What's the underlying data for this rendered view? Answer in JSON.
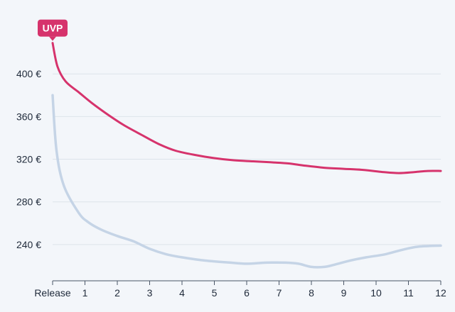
{
  "chart_data": {
    "type": "line",
    "x_tick_labels": [
      "Release",
      "1",
      "2",
      "3",
      "4",
      "5",
      "6",
      "7",
      "8",
      "9",
      "10",
      "11",
      "12"
    ],
    "y_ticks": [
      240,
      280,
      320,
      360,
      400
    ],
    "y_tick_labels": [
      "240 €",
      "280 €",
      "320 €",
      "360 €",
      "400 €"
    ],
    "xlim": [
      0,
      12
    ],
    "ylim": [
      206,
      448
    ],
    "grid": true,
    "series": [
      {
        "name": "UVP",
        "color": "#d6336c",
        "badge": true,
        "points": [
          [
            0,
            429
          ],
          [
            0.15,
            407
          ],
          [
            0.4,
            393
          ],
          [
            0.8,
            383
          ],
          [
            1.2,
            373
          ],
          [
            1.7,
            362
          ],
          [
            2.2,
            352
          ],
          [
            2.8,
            342
          ],
          [
            3.3,
            334
          ],
          [
            3.8,
            328
          ],
          [
            4.4,
            324
          ],
          [
            5,
            321
          ],
          [
            5.6,
            319
          ],
          [
            6.2,
            318
          ],
          [
            6.8,
            317
          ],
          [
            7.3,
            316
          ],
          [
            7.8,
            314
          ],
          [
            8.4,
            312
          ],
          [
            9,
            311
          ],
          [
            9.6,
            310
          ],
          [
            10.2,
            308
          ],
          [
            10.7,
            307
          ],
          [
            11.2,
            308
          ],
          [
            11.6,
            309
          ],
          [
            12,
            309
          ]
        ]
      },
      {
        "name": "",
        "color": "#c5d4e6",
        "badge": false,
        "points": [
          [
            0,
            380
          ],
          [
            0.12,
            328
          ],
          [
            0.35,
            295
          ],
          [
            0.8,
            270
          ],
          [
            1.1,
            261
          ],
          [
            1.5,
            254
          ],
          [
            2,
            248
          ],
          [
            2.5,
            243
          ],
          [
            3,
            236
          ],
          [
            3.5,
            231
          ],
          [
            4,
            228
          ],
          [
            4.7,
            225
          ],
          [
            5.5,
            223
          ],
          [
            6,
            222
          ],
          [
            6.6,
            223
          ],
          [
            7.2,
            223
          ],
          [
            7.6,
            222
          ],
          [
            8,
            219
          ],
          [
            8.4,
            219
          ],
          [
            8.7,
            221
          ],
          [
            9.2,
            225
          ],
          [
            9.7,
            228
          ],
          [
            10.3,
            231
          ],
          [
            10.8,
            235
          ],
          [
            11.3,
            238
          ],
          [
            12,
            239
          ]
        ]
      }
    ]
  }
}
